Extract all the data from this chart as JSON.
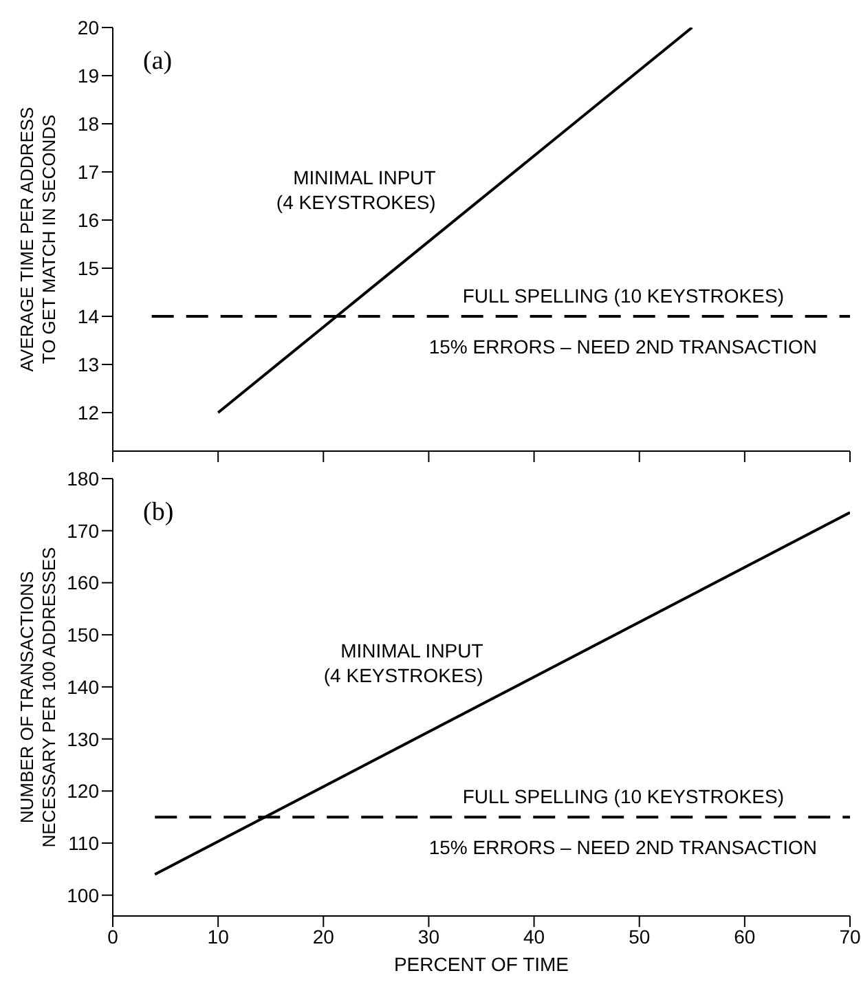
{
  "chart_data": [
    {
      "type": "line",
      "title": "(a)",
      "ylabel": "AVERAGE TIME PER ADDRESS TO GET MATCH IN SECONDS",
      "xlim": [
        0,
        70
      ],
      "xticks": [
        0,
        10,
        20,
        30,
        40,
        50,
        60,
        70
      ],
      "ylim": [
        11.2,
        20
      ],
      "yticks": [
        12,
        13,
        14,
        15,
        16,
        17,
        18,
        19,
        20
      ],
      "tick_labels": "y",
      "annotations": [
        "15% ERRORS – NEED 2ND TRANSACTION"
      ],
      "series": [
        {
          "name": "MINIMAL INPUT (4 KEYSTROKES)",
          "color": "#000000",
          "line_style": "solid",
          "x": [
            10,
            55
          ],
          "values": [
            12,
            20
          ]
        },
        {
          "name": "FULL SPELLING (10 KEYSTROKES)",
          "color": "#000000",
          "line_style": "dashed",
          "x": [
            3.7,
            70
          ],
          "values": [
            14,
            14
          ]
        }
      ]
    },
    {
      "type": "line",
      "title": "(b)",
      "xlabel": "PERCENT OF TIME",
      "ylabel": "NUMBER OF TRANSACTIONS NECESSARY PER 100 ADDRESSES",
      "xlim": [
        0,
        70
      ],
      "xticks": [
        0,
        10,
        20,
        30,
        40,
        50,
        60,
        70
      ],
      "ylim": [
        96,
        180
      ],
      "yticks": [
        100,
        110,
        120,
        130,
        140,
        150,
        160,
        170,
        180
      ],
      "annotations": [
        "15% ERRORS – NEED 2ND TRANSACTION"
      ],
      "series": [
        {
          "name": "MINIMAL INPUT (4 KEYSTROKES)",
          "color": "#000000",
          "line_style": "solid",
          "x": [
            4,
            70
          ],
          "values": [
            104,
            173.5
          ]
        },
        {
          "name": "FULL SPELLING (10 KEYSTROKES)",
          "color": "#000000",
          "line_style": "dashed",
          "x": [
            4,
            70
          ],
          "values": [
            115,
            115
          ]
        }
      ]
    }
  ]
}
